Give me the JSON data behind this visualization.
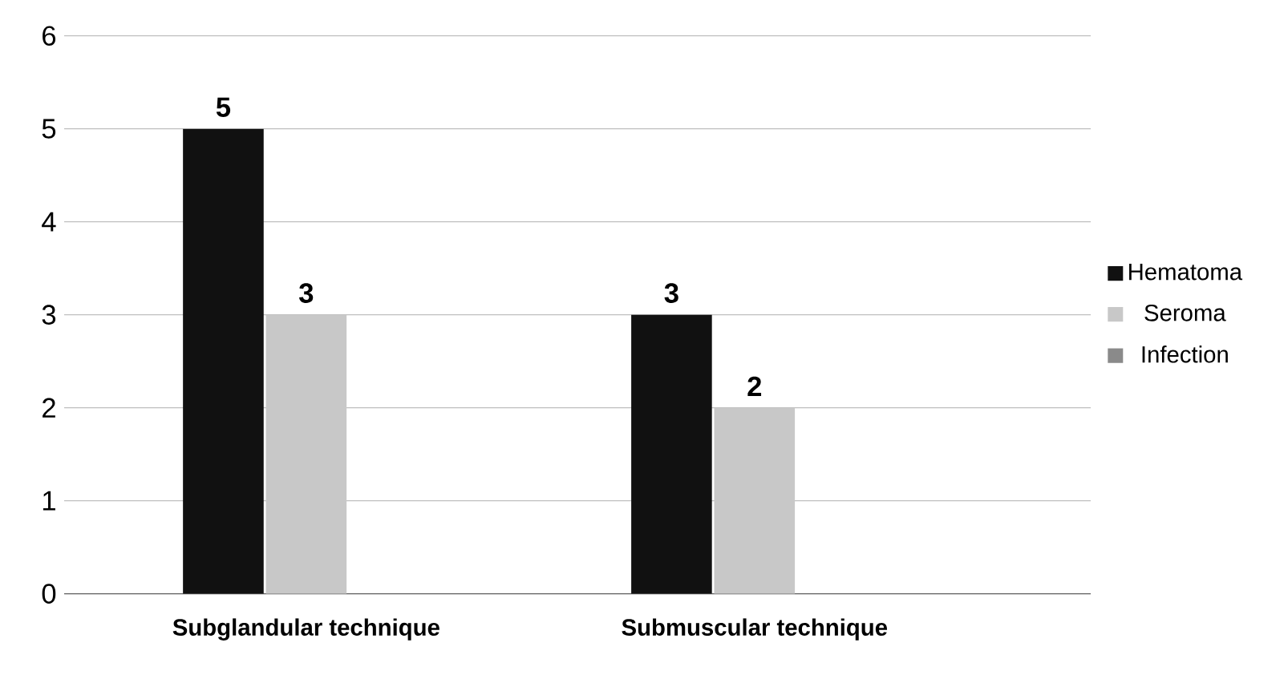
{
  "chart_data": {
    "type": "bar",
    "categories": [
      "Subglandular technique",
      "Submuscular technique"
    ],
    "series": [
      {
        "name": "Hematoma",
        "color": "#111111",
        "values": [
          5,
          3
        ],
        "value_labels": [
          "5",
          "3"
        ]
      },
      {
        "name": "Seroma",
        "color": "#c8c8c8",
        "values": [
          3,
          2
        ],
        "value_labels": [
          "3",
          "2"
        ]
      },
      {
        "name": "Infection",
        "color": "#8a8a8a",
        "values": [
          0,
          0
        ],
        "value_labels": [
          null,
          null
        ]
      }
    ],
    "ylim": [
      0,
      6
    ],
    "yticks": [
      0,
      1,
      2,
      3,
      4,
      5,
      6
    ],
    "grid": "y",
    "legend": "right"
  }
}
